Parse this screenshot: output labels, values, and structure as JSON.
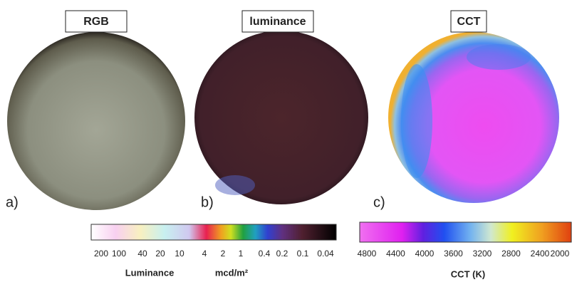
{
  "panels": [
    {
      "title": "RGB",
      "letter": "a)"
    },
    {
      "title": "luminance",
      "letter": "b)"
    },
    {
      "title": "CCT",
      "letter": "c)"
    }
  ],
  "luminance_bar": {
    "ticks": [
      "200",
      "100",
      "40",
      "20",
      "10",
      "4",
      "2",
      "1",
      "0.4",
      "0.2",
      "0.1",
      "0.04"
    ],
    "label": "Luminance",
    "unit": "mcd/m²"
  },
  "cct_bar": {
    "ticks": [
      "4800",
      "4400",
      "4000",
      "3600",
      "3200",
      "2800",
      "2400",
      "2000"
    ],
    "label": "CCT (K)"
  }
}
